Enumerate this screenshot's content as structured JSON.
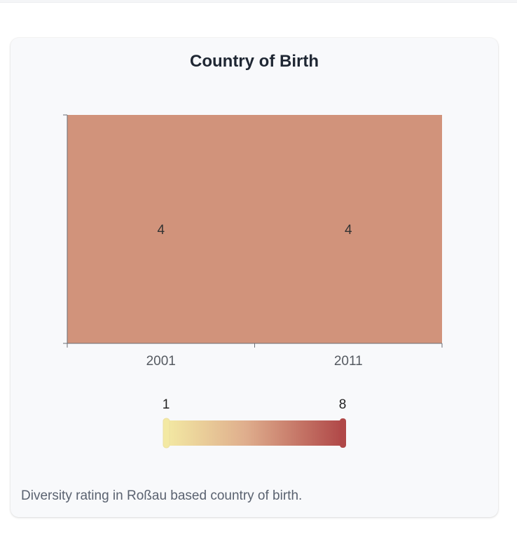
{
  "page": {
    "top_strip": ""
  },
  "card": {
    "title": "Country of Birth",
    "description": "Diversity rating in Roßau based country of birth."
  },
  "chart_data": {
    "type": "heatmap",
    "title": "Country of Birth",
    "x_categories": [
      "2001",
      "2011"
    ],
    "rows": 1,
    "values": [
      4,
      4
    ],
    "color_scale": {
      "min": 1,
      "max": 8,
      "min_color": "#f3e9a3",
      "mid_color": "#dfae8d",
      "max_color": "#b04848"
    },
    "cell_color": "#d1937b",
    "grid": false
  },
  "legend": {
    "min_label": "1",
    "max_label": "8"
  },
  "colors": {
    "card_bg": "#f8f9fb",
    "title": "#1f2733",
    "description": "#5a6270",
    "axis": "#6b6f76"
  }
}
